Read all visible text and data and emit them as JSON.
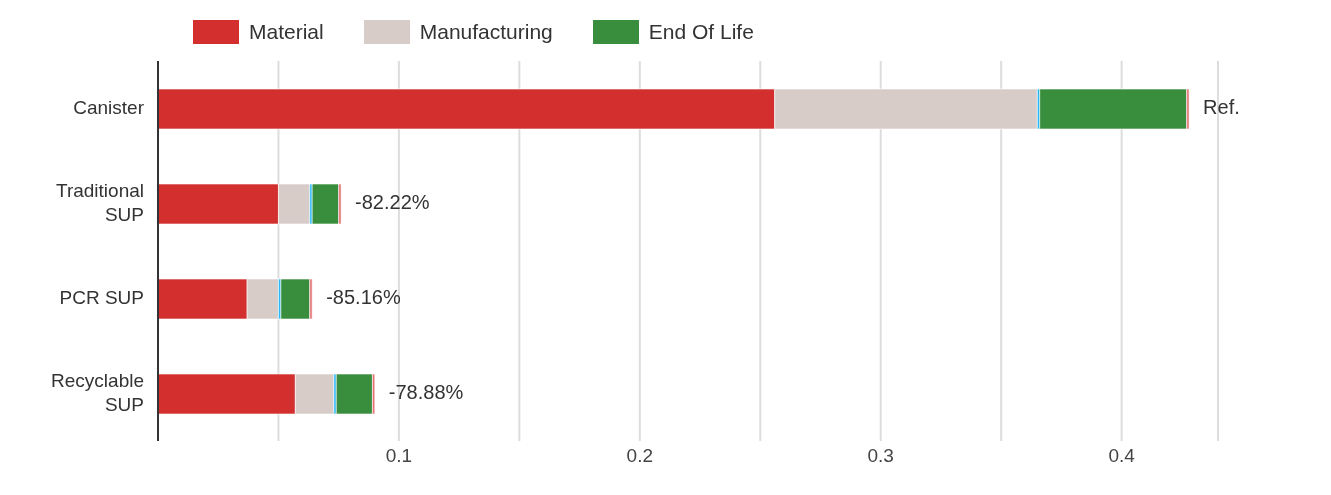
{
  "chart_data": {
    "type": "bar",
    "orientation": "horizontal",
    "stacked": true,
    "categories": [
      "Canister",
      "Traditional SUP",
      "PCR SUP",
      "Recyclable SUP"
    ],
    "series": [
      {
        "name": "Material",
        "color": "#d32f2f",
        "values": [
          0.256,
          0.05,
          0.037,
          0.057
        ]
      },
      {
        "name": "Manufacturing",
        "color": "#d7ccc8",
        "values": [
          0.109,
          0.013,
          0.013,
          0.016
        ]
      },
      {
        "color": "#29b6f6",
        "values": [
          0.001,
          0.001,
          0.001,
          0.001
        ]
      },
      {
        "name": "End Of Life",
        "color": "#388e3c",
        "values": [
          0.061,
          0.011,
          0.012,
          0.015
        ]
      },
      {
        "color": "#e57373",
        "values": [
          0.001,
          0.001,
          0.001,
          0.001
        ]
      }
    ],
    "annotations": [
      {
        "text": "Ref.",
        "x": 0.428,
        "y": "Canister"
      },
      {
        "text": "-82.22%",
        "x": 0.076,
        "y": "Traditional SUP"
      },
      {
        "text": "-85.16%",
        "x": 0.064,
        "y": "PCR SUP"
      },
      {
        "text": "-78.88%",
        "x": 0.09,
        "y": "Recyclable SUP"
      }
    ],
    "xlim": [
      0,
      0.44
    ],
    "xticks": [
      {
        "value": 0.05,
        "label": null
      },
      0.1,
      {
        "value": 0.15,
        "label": null
      },
      0.2,
      {
        "value": 0.25,
        "label": null
      },
      0.3,
      {
        "value": 0.35,
        "label": null
      },
      0.4
    ],
    "grid": "x",
    "legend": "top"
  }
}
